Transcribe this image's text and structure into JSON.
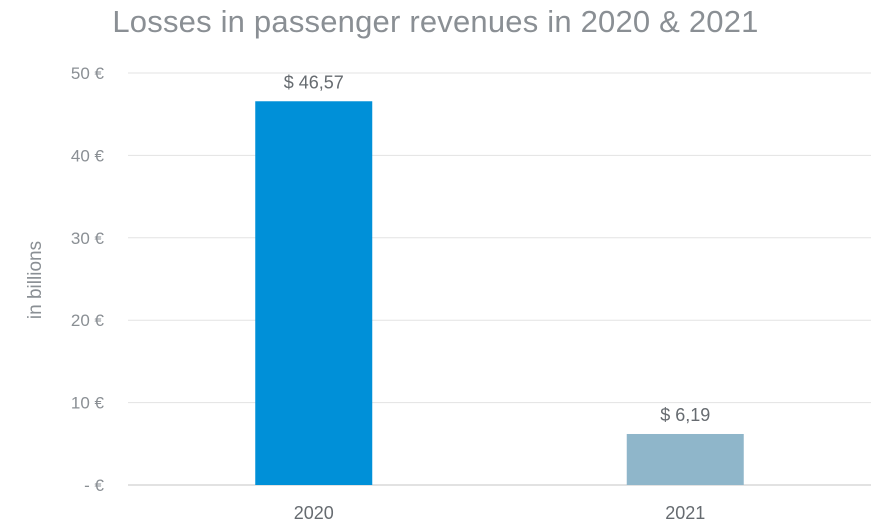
{
  "chart_data": {
    "type": "bar",
    "title": "Losses in passenger revenues in 2020 & 2021",
    "ylabel": "in billions",
    "xlabel": "",
    "categories": [
      "2020",
      "2021"
    ],
    "values": [
      46.57,
      6.19
    ],
    "data_labels": [
      "$ 46,57",
      "$ 6,19"
    ],
    "bar_colors": [
      "#0090d8",
      "#8fb6ca"
    ],
    "ylim": [
      0,
      50
    ],
    "yticks": [
      0,
      10,
      20,
      30,
      40,
      50
    ],
    "ytick_labels": [
      "- €",
      "10 €",
      "20 €",
      "30 €",
      "40 €",
      "50 €"
    ],
    "grid": true,
    "legend": "none"
  },
  "colors": {
    "text": "#8a8f94",
    "grid": "#e3e3e3",
    "axis": "#d0d0d0",
    "data_label": "#666b70"
  }
}
